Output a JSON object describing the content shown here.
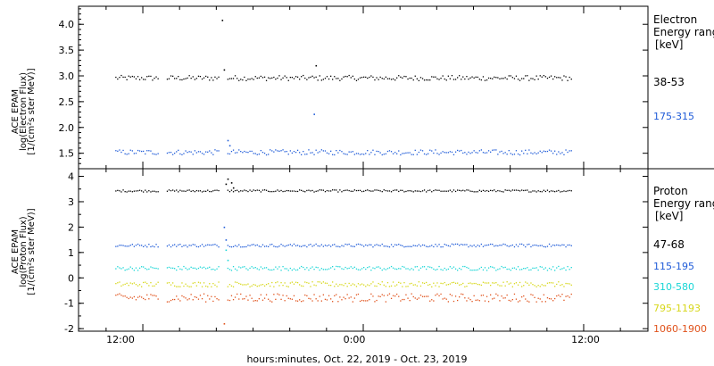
{
  "xlabel": "hours:minutes, Oct. 22, 2019 - Oct. 23, 2019",
  "x_ticks": [
    "12:00",
    "0:00",
    "12:00"
  ],
  "chart_data": [
    {
      "type": "scatter",
      "ylabel": [
        "ACE EPAM",
        "log(Electron Flux)",
        "[1/(cm²s ster MeV)]"
      ],
      "ylim": [
        1.2,
        4.35
      ],
      "yticks": [
        "1.5",
        "2.0",
        "2.5",
        "3.0",
        "3.5",
        "4.0"
      ],
      "legend_title": [
        "Electron",
        "Energy range",
        "[keV]"
      ],
      "x_range_hours": [
        -15.5,
        15.5
      ],
      "gaps": [
        [
          -11.2,
          -10.8
        ],
        [
          -7.9,
          -7.5
        ]
      ],
      "data_end": 11.3,
      "series": [
        {
          "name": "38-53",
          "color": "#000000",
          "base": 2.96,
          "jitter": 0.05,
          "outliers": [
            [
              -7.7,
              4.08
            ],
            [
              -7.6,
              3.12
            ],
            [
              -2.6,
              3.2
            ]
          ]
        },
        {
          "name": "175-315",
          "color": "#1f5bd8",
          "base": 1.52,
          "jitter": 0.05,
          "outliers": [
            [
              -2.7,
              2.26
            ],
            [
              -7.4,
              1.75
            ],
            [
              -7.3,
              1.65
            ]
          ]
        }
      ]
    },
    {
      "type": "scatter",
      "ylabel": [
        "ACE EPAM",
        "log(Proton Flux)",
        "[1/(cm²s ster MeV)]"
      ],
      "ylim": [
        -2.1,
        4.3
      ],
      "yticks": [
        "-2",
        "-1",
        "0",
        "1",
        "2",
        "3",
        "4"
      ],
      "legend_title": [
        "Proton",
        "Energy range",
        "[keV]"
      ],
      "x_range_hours": [
        -15.5,
        15.5
      ],
      "gaps": [
        [
          -11.2,
          -10.8
        ],
        [
          -7.9,
          -7.5
        ]
      ],
      "data_end": 11.3,
      "series": [
        {
          "name": "47-68",
          "color": "#000000",
          "base": 3.43,
          "jitter": 0.04,
          "outliers": [
            [
              -7.5,
              3.7
            ],
            [
              -7.4,
              3.9
            ],
            [
              -7.2,
              3.75
            ],
            [
              -7.1,
              3.55
            ]
          ]
        },
        {
          "name": "115-195",
          "color": "#1f5bd8",
          "base": 1.28,
          "jitter": 0.06,
          "outliers": [
            [
              -7.6,
              2.0
            ],
            [
              -7.5,
              1.5
            ]
          ]
        },
        {
          "name": "310-580",
          "color": "#19d6d6",
          "base": 0.38,
          "jitter": 0.08,
          "outliers": [
            [
              -7.5,
              1.1
            ],
            [
              -7.4,
              0.7
            ]
          ]
        },
        {
          "name": "795-1193",
          "color": "#d7d71a",
          "base": -0.25,
          "jitter": 0.1,
          "outliers": []
        },
        {
          "name": "1060-1900",
          "color": "#e0521b",
          "base": -0.78,
          "jitter": 0.16,
          "outliers": [
            [
              -7.6,
              -1.8
            ]
          ]
        }
      ]
    }
  ]
}
